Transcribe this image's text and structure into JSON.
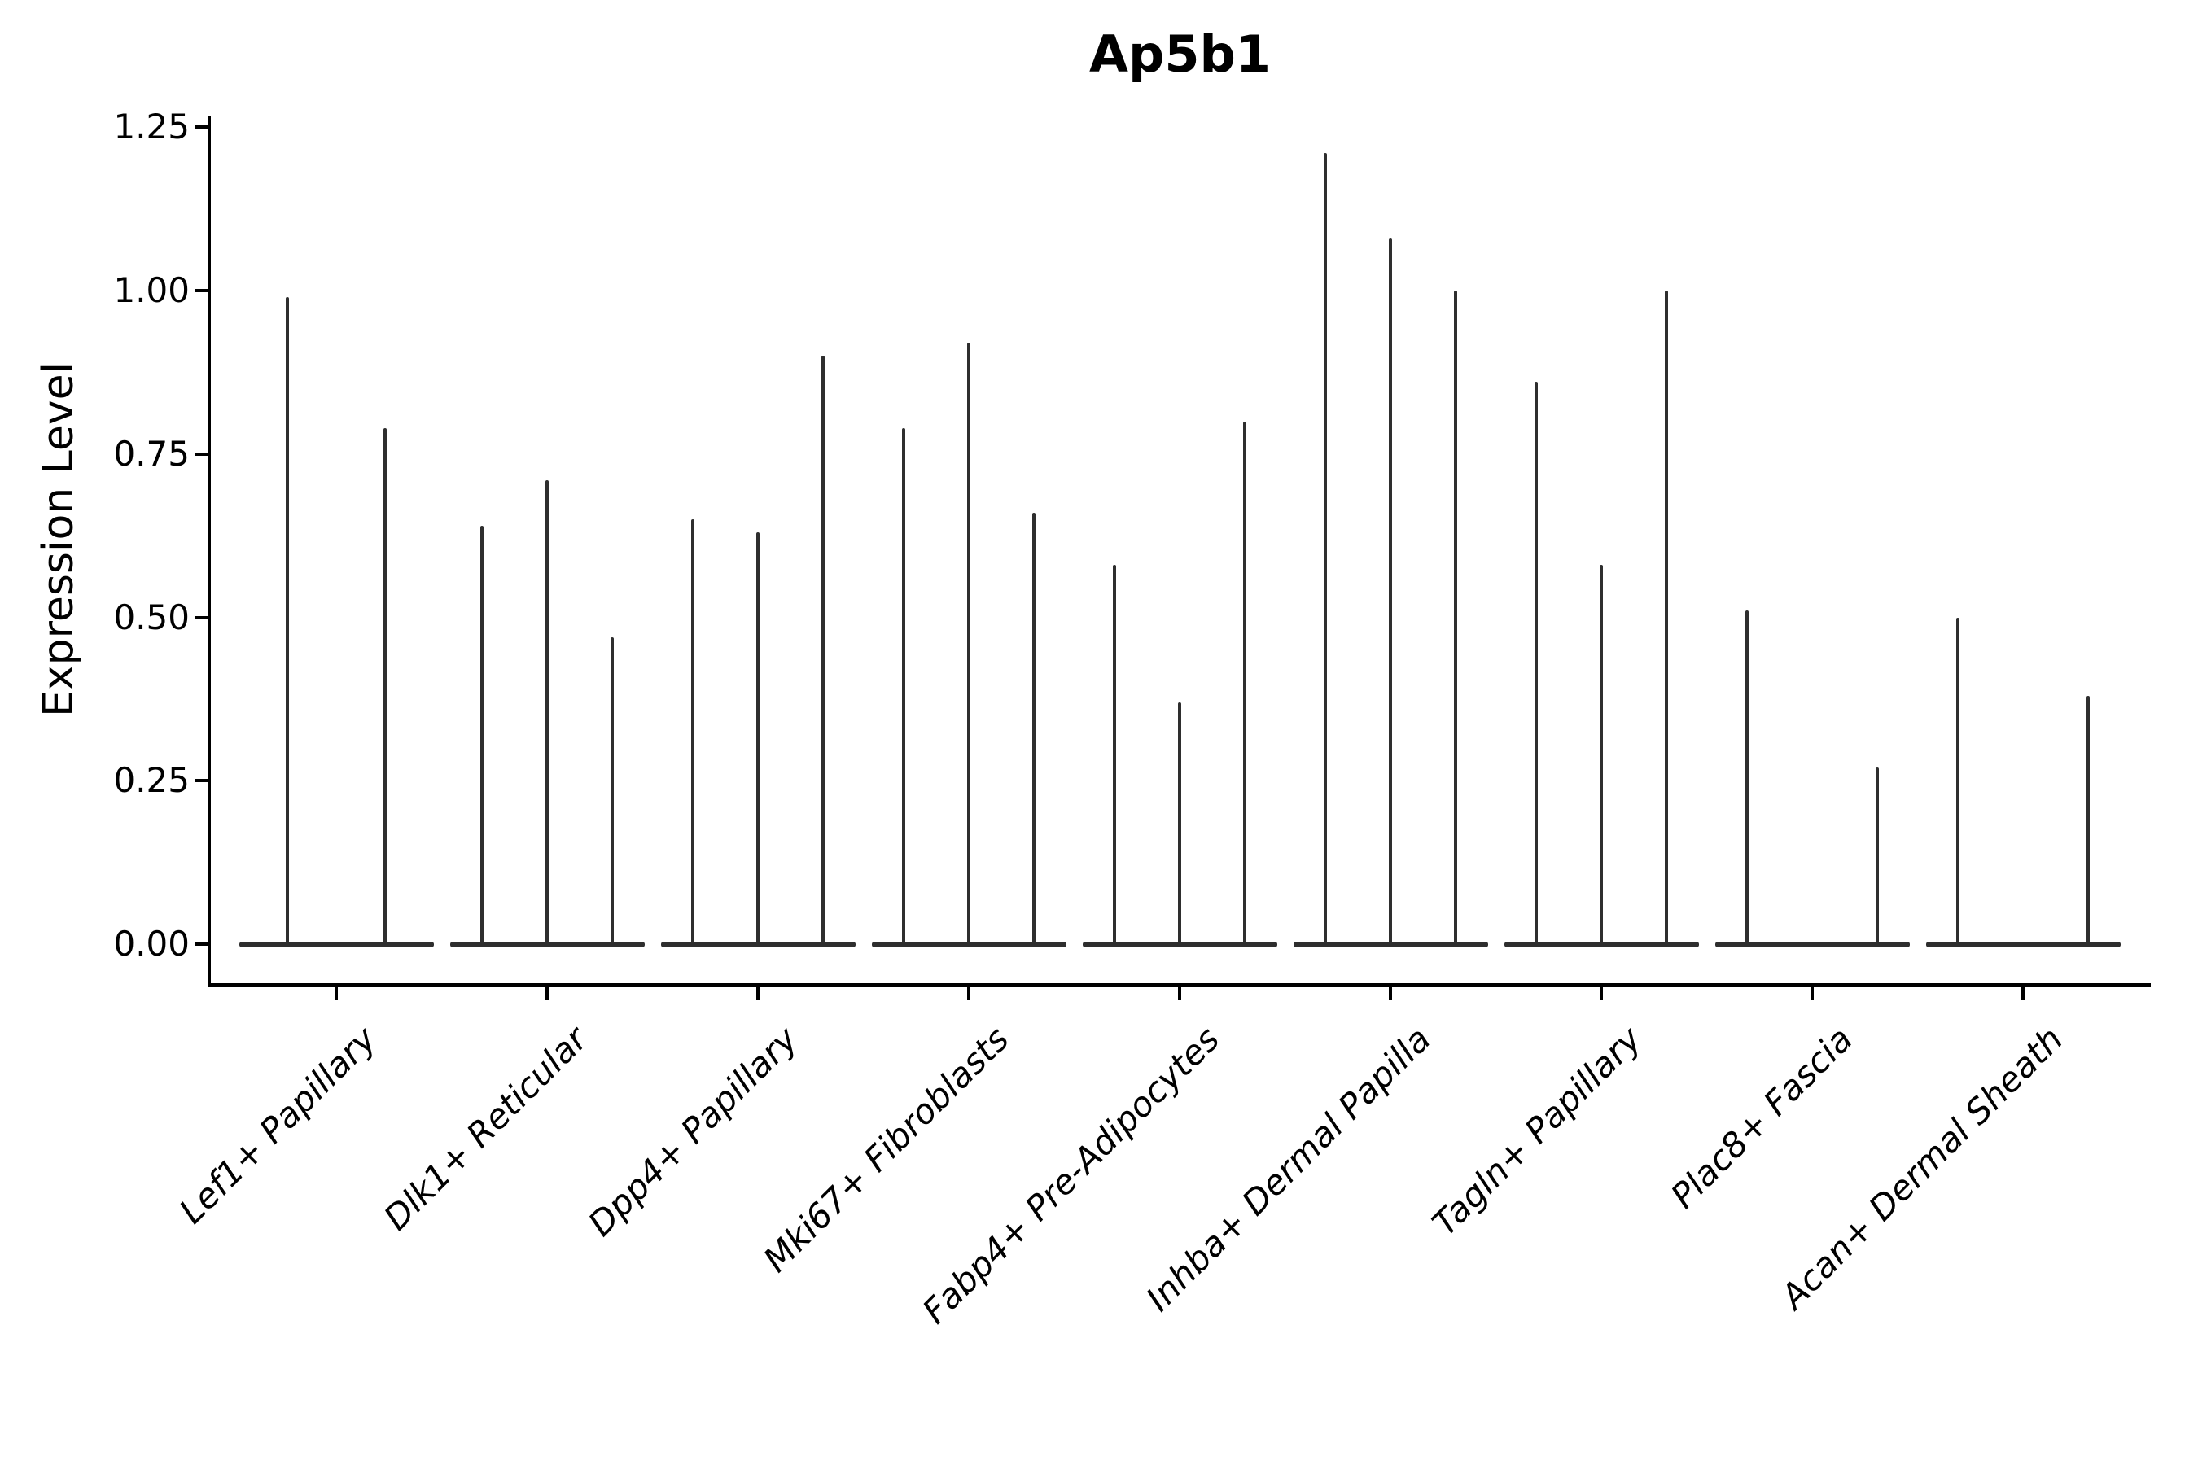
{
  "chart_data": {
    "type": "violin",
    "title": "Ap5b1",
    "ylabel": "Expression Level",
    "xlabel": "",
    "yticks": [
      "0.00",
      "0.25",
      "0.50",
      "0.75",
      "1.00",
      "1.25"
    ],
    "ytick_values": [
      0,
      0.25,
      0.5,
      0.75,
      1.0,
      1.25
    ],
    "ylim": [
      -0.06,
      1.27
    ],
    "grid": false,
    "legend": null,
    "note": "needle-thin violins; each category holds 2-3 collapsed violins rising from a flat baseline at 0; value = height of each violin tip in Expression Level units; 0 = completely flat violin",
    "ink_color": "#2e2e2e",
    "axis_color": "#000000",
    "categories": [
      "Lef1+ Papillary",
      "Dlk1+ Reticular",
      "Dpp4+ Papillary",
      "Mki67+ Fibroblasts",
      "Fabp4+ Pre-Adipocytes",
      "Inhba+ Dermal Papilla",
      "Tagln+ Papillary",
      "Plac8+ Fascia",
      "Acan+ Dermal Sheath"
    ],
    "groups": [
      {
        "category": "Lef1+ Papillary",
        "spikes": [
          0.99,
          0.79
        ]
      },
      {
        "category": "Dlk1+ Reticular",
        "spikes": [
          0.64,
          0.71,
          0.47
        ]
      },
      {
        "category": "Dpp4+ Papillary",
        "spikes": [
          0.65,
          0.63,
          0.9
        ]
      },
      {
        "category": "Mki67+ Fibroblasts",
        "spikes": [
          0.79,
          0.92,
          0.66
        ]
      },
      {
        "category": "Fabp4+ Pre-Adipocytes",
        "spikes": [
          0.58,
          0.37,
          0.8
        ]
      },
      {
        "category": "Inhba+ Dermal Papilla",
        "spikes": [
          1.21,
          1.08,
          1.0
        ]
      },
      {
        "category": "Tagln+ Papillary",
        "spikes": [
          0.86,
          0.58,
          1.0
        ]
      },
      {
        "category": "Plac8+ Fascia",
        "spikes": [
          0.51,
          0,
          0.27
        ]
      },
      {
        "category": "Acan+ Dermal Sheath",
        "spikes": [
          0.5,
          0,
          0.38
        ]
      }
    ]
  }
}
